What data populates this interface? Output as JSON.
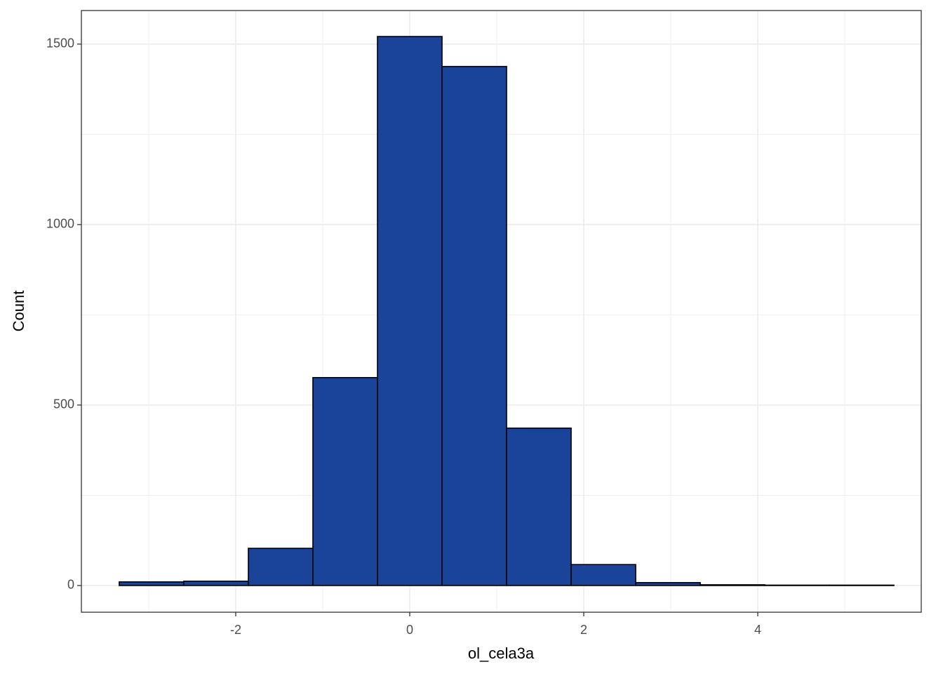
{
  "chart_data": {
    "type": "histogram",
    "x_label": "ol_cela3a",
    "y_label": "Count",
    "bins": [
      -3.339,
      -2.597,
      -1.855,
      -1.113,
      -0.371,
      0.371,
      1.113,
      1.855,
      2.597,
      3.339,
      4.081,
      4.823,
      5.565
    ],
    "values": [
      10,
      12,
      103,
      576,
      1521,
      1438,
      436,
      58,
      8,
      2,
      1,
      1
    ],
    "color": "#1a449a",
    "edge_color": "#000000",
    "xlim": [
      -3.774,
      5.879
    ],
    "ylim": [
      -74,
      1593
    ],
    "xticks": [
      -2,
      0,
      2,
      4
    ],
    "yticks": [
      0,
      500,
      1000,
      1500
    ],
    "minor_xticks": [
      -3,
      -1,
      1,
      3,
      5
    ],
    "minor_yticks": [
      250,
      750,
      1250
    ],
    "grid": true
  }
}
